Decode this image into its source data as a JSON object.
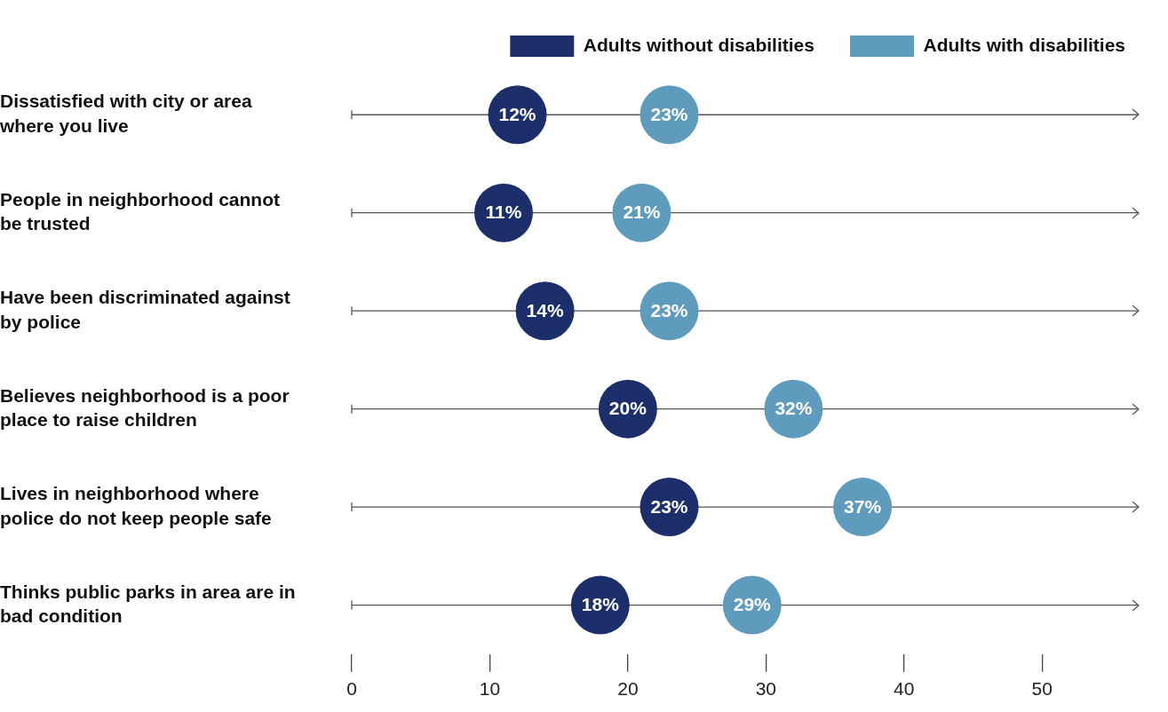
{
  "chart_data": {
    "type": "scatter",
    "orientation": "horizontal",
    "categories": [
      "Dissatisfied with city or area where you live",
      "People in neighborhood cannot be trusted",
      "Have been discriminated against by police",
      "Believes neighborhood is a poor place to raise children",
      "Lives in neighborhood where police do not keep people safe",
      "Thinks public parks in area are in bad condition"
    ],
    "series": [
      {
        "name": "Adults without disabilities",
        "color": "#1c2f6b",
        "values": [
          12,
          11,
          14,
          20,
          23,
          18
        ],
        "value_labels": [
          "12%",
          "11%",
          "14%",
          "20%",
          "23%",
          "18%"
        ]
      },
      {
        "name": "Adults with disabilities",
        "color": "#5f9bbd",
        "values": [
          23,
          21,
          23,
          32,
          37,
          29
        ],
        "value_labels": [
          "23%",
          "21%",
          "23%",
          "32%",
          "37%",
          "29%"
        ]
      }
    ],
    "xlim": [
      0,
      57
    ],
    "xticks": [
      0,
      10,
      20,
      30,
      40,
      50
    ],
    "grid": "y",
    "legend": "top",
    "marker": "circle"
  }
}
